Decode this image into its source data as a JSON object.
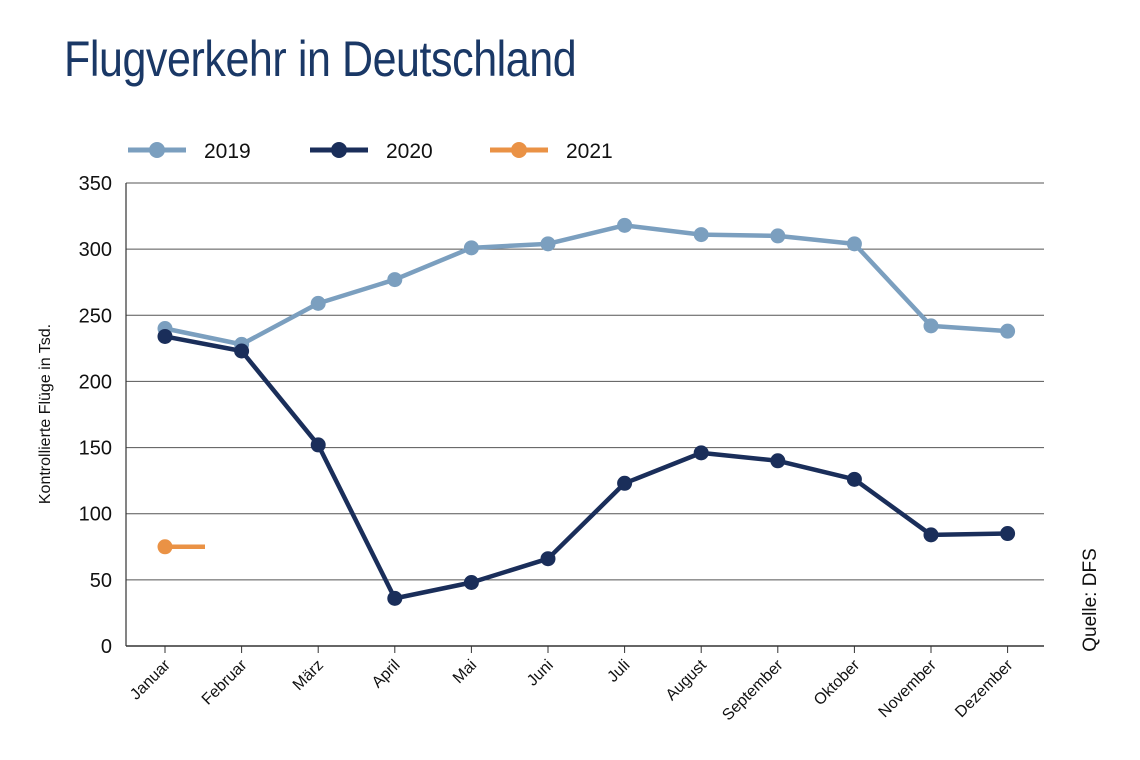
{
  "title": "Flugverkehr in Deutschland",
  "source": "Quelle: DFS",
  "chart_data": {
    "type": "line",
    "title": "Flugverkehr in Deutschland",
    "xlabel": "",
    "ylabel": "Kontrollierte Flüge in Tsd.",
    "ylim": [
      0,
      350
    ],
    "yticks": [
      0,
      50,
      100,
      150,
      200,
      250,
      300,
      350
    ],
    "grid": "horizontal",
    "legend_position": "top",
    "categories": [
      "Januar",
      "Februar",
      "März",
      "April",
      "Mai",
      "Juni",
      "Juli",
      "August",
      "September",
      "Oktober",
      "November",
      "Dezember"
    ],
    "series": [
      {
        "name": "2019",
        "color": "#7b9fbf",
        "values": [
          240,
          228,
          259,
          277,
          301,
          304,
          318,
          311,
          310,
          304,
          242,
          238
        ]
      },
      {
        "name": "2020",
        "color": "#1a2e5a",
        "values": [
          234,
          223,
          152,
          36,
          48,
          66,
          123,
          146,
          140,
          126,
          84,
          85
        ]
      },
      {
        "name": "2021",
        "color": "#ea9245",
        "values": [
          75,
          null,
          null,
          null,
          null,
          null,
          null,
          null,
          null,
          null,
          null,
          null
        ]
      }
    ]
  }
}
